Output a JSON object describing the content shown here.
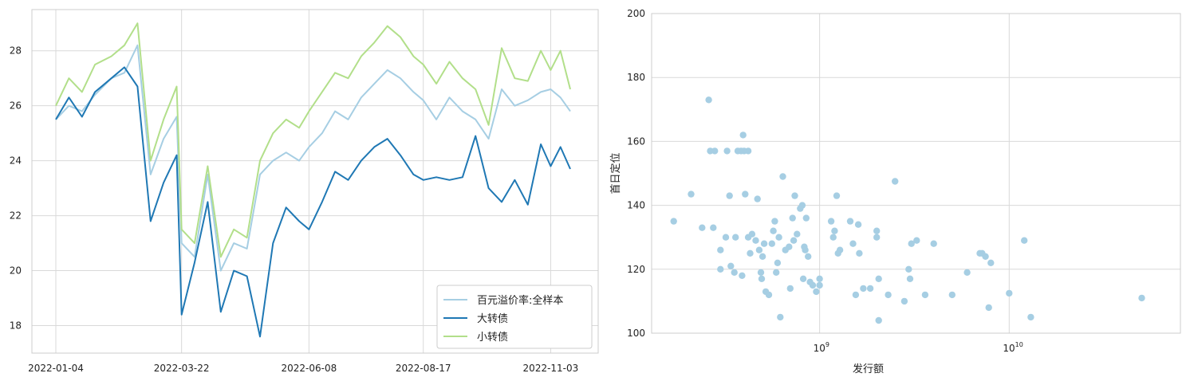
{
  "chart_data": [
    {
      "type": "line",
      "title": "",
      "xlabel": "",
      "ylabel": "",
      "x_ticks": [
        "2022-01-04",
        "2022-03-22",
        "2022-06-08",
        "2022-08-17",
        "2022-11-03"
      ],
      "ylim": [
        17,
        29.5
      ],
      "y_ticks": [
        18,
        20,
        22,
        24,
        26,
        28
      ],
      "grid": true,
      "legend_position": "lower-right",
      "x": [
        "2022-01-04",
        "2022-01-12",
        "2022-01-20",
        "2022-01-28",
        "2022-02-07",
        "2022-02-15",
        "2022-02-23",
        "2022-03-03",
        "2022-03-11",
        "2022-03-19",
        "2022-03-22",
        "2022-03-30",
        "2022-04-07",
        "2022-04-15",
        "2022-04-23",
        "2022-05-01",
        "2022-05-09",
        "2022-05-17",
        "2022-05-25",
        "2022-06-02",
        "2022-06-08",
        "2022-06-16",
        "2022-06-24",
        "2022-07-02",
        "2022-07-10",
        "2022-07-18",
        "2022-07-26",
        "2022-08-03",
        "2022-08-11",
        "2022-08-17",
        "2022-08-25",
        "2022-09-02",
        "2022-09-10",
        "2022-09-18",
        "2022-09-26",
        "2022-10-04",
        "2022-10-12",
        "2022-10-20",
        "2022-10-28",
        "2022-11-03",
        "2022-11-09",
        "2022-11-15"
      ],
      "series": [
        {
          "name": "百元溢价率:全样本",
          "color": "#a6cee3",
          "values": [
            25.5,
            26.0,
            25.8,
            26.4,
            27.0,
            27.2,
            28.2,
            23.5,
            24.8,
            25.6,
            21.0,
            20.5,
            23.5,
            20.0,
            21.0,
            20.8,
            23.5,
            24.0,
            24.3,
            24.0,
            24.5,
            25.0,
            25.8,
            25.5,
            26.3,
            26.8,
            27.3,
            27.0,
            26.5,
            26.2,
            25.5,
            26.3,
            25.8,
            25.5,
            24.8,
            26.6,
            26.0,
            26.2,
            26.5,
            26.6,
            26.3,
            25.8
          ]
        },
        {
          "name": "大转债",
          "color": "#1f78b4",
          "values": [
            25.5,
            26.3,
            25.6,
            26.5,
            27.0,
            27.4,
            26.7,
            21.8,
            23.2,
            24.2,
            18.4,
            20.3,
            22.5,
            18.5,
            20.0,
            19.8,
            17.6,
            21.0,
            22.3,
            21.8,
            21.5,
            22.5,
            23.6,
            23.3,
            24.0,
            24.5,
            24.8,
            24.2,
            23.5,
            23.3,
            23.4,
            23.3,
            23.4,
            24.9,
            23.0,
            22.5,
            23.3,
            22.4,
            24.6,
            23.8,
            24.5,
            23.7
          ]
        },
        {
          "name": "小转债",
          "color": "#b2df8a",
          "values": [
            26.0,
            27.0,
            26.5,
            27.5,
            27.8,
            28.2,
            29.0,
            24.0,
            25.5,
            26.7,
            21.5,
            21.0,
            23.8,
            20.5,
            21.5,
            21.2,
            24.0,
            25.0,
            25.5,
            25.2,
            25.8,
            26.5,
            27.2,
            27.0,
            27.8,
            28.3,
            28.9,
            28.5,
            27.8,
            27.5,
            26.8,
            27.6,
            27.0,
            26.6,
            25.3,
            28.1,
            27.0,
            26.9,
            28.0,
            27.3,
            28.0,
            26.6
          ]
        }
      ]
    },
    {
      "type": "scatter",
      "title": "",
      "xlabel": "发行额",
      "ylabel": "首日定位",
      "x_scale": "log",
      "xlim": [
        130000000,
        80000000000
      ],
      "x_ticks": [
        "10^9",
        "10^10"
      ],
      "ylim": [
        100,
        200
      ],
      "y_ticks": [
        100,
        120,
        140,
        160,
        180,
        200
      ],
      "grid": true,
      "color": "#a6cee3",
      "points": [
        [
          170000000,
          135
        ],
        [
          210000000,
          143.5
        ],
        [
          240000000,
          133
        ],
        [
          260000000,
          173
        ],
        [
          265000000,
          157
        ],
        [
          280000000,
          157
        ],
        [
          275000000,
          133
        ],
        [
          300000000,
          126
        ],
        [
          300000000,
          120
        ],
        [
          320000000,
          130
        ],
        [
          325000000,
          157
        ],
        [
          335000000,
          143
        ],
        [
          340000000,
          121
        ],
        [
          355000000,
          119
        ],
        [
          360000000,
          130
        ],
        [
          370000000,
          157
        ],
        [
          385000000,
          157
        ],
        [
          390000000,
          118
        ],
        [
          395000000,
          162
        ],
        [
          400000000,
          157
        ],
        [
          405000000,
          143.5
        ],
        [
          420000000,
          130
        ],
        [
          420000000,
          157
        ],
        [
          430000000,
          125
        ],
        [
          440000000,
          131
        ],
        [
          460000000,
          129
        ],
        [
          470000000,
          142
        ],
        [
          480000000,
          126
        ],
        [
          490000000,
          119
        ],
        [
          495000000,
          117
        ],
        [
          500000000,
          124
        ],
        [
          510000000,
          128
        ],
        [
          520000000,
          113
        ],
        [
          540000000,
          112
        ],
        [
          560000000,
          128
        ],
        [
          570000000,
          132
        ],
        [
          580000000,
          135
        ],
        [
          590000000,
          119
        ],
        [
          600000000,
          122
        ],
        [
          610000000,
          130
        ],
        [
          620000000,
          105
        ],
        [
          640000000,
          149
        ],
        [
          660000000,
          126
        ],
        [
          690000000,
          127
        ],
        [
          700000000,
          114
        ],
        [
          720000000,
          136
        ],
        [
          730000000,
          129
        ],
        [
          740000000,
          143
        ],
        [
          760000000,
          131
        ],
        [
          790000000,
          139
        ],
        [
          810000000,
          140
        ],
        [
          820000000,
          117
        ],
        [
          830000000,
          127
        ],
        [
          840000000,
          126
        ],
        [
          850000000,
          136
        ],
        [
          870000000,
          124
        ],
        [
          890000000,
          116
        ],
        [
          920000000,
          115
        ],
        [
          960000000,
          113
        ],
        [
          1000000000,
          117
        ],
        [
          1000000000,
          115
        ],
        [
          1150000000,
          135
        ],
        [
          1180000000,
          130
        ],
        [
          1200000000,
          132
        ],
        [
          1230000000,
          143
        ],
        [
          1250000000,
          125
        ],
        [
          1280000000,
          126
        ],
        [
          1450000000,
          135
        ],
        [
          1500000000,
          128
        ],
        [
          1550000000,
          112
        ],
        [
          1600000000,
          134
        ],
        [
          1620000000,
          125
        ],
        [
          1700000000,
          114
        ],
        [
          1850000000,
          114
        ],
        [
          2000000000,
          132
        ],
        [
          2000000000,
          130
        ],
        [
          2050000000,
          117
        ],
        [
          2050000000,
          104
        ],
        [
          2300000000,
          112
        ],
        [
          2500000000,
          147.5
        ],
        [
          2800000000,
          110
        ],
        [
          2950000000,
          120
        ],
        [
          3000000000,
          117
        ],
        [
          3050000000,
          128
        ],
        [
          3250000000,
          129
        ],
        [
          3600000000,
          112
        ],
        [
          4000000000,
          128
        ],
        [
          5000000000,
          112
        ],
        [
          6000000000,
          119
        ],
        [
          7000000000,
          125
        ],
        [
          7200000000,
          125
        ],
        [
          7500000000,
          124
        ],
        [
          7800000000,
          108
        ],
        [
          8000000000,
          122
        ],
        [
          10000000000,
          112.5
        ],
        [
          12000000000,
          129
        ],
        [
          13000000000,
          105
        ],
        [
          50000000000,
          111
        ]
      ]
    }
  ]
}
